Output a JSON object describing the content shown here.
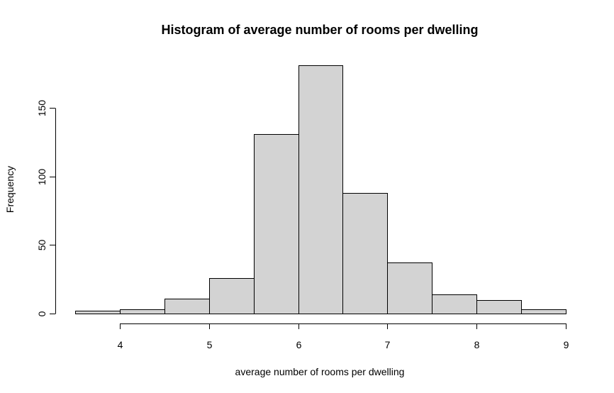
{
  "chart_data": {
    "type": "bar",
    "title": "Histogram of average number of rooms per dwelling",
    "xlabel": "average number of rooms per dwelling",
    "ylabel": "Frequency",
    "bins": [
      {
        "start": 3.5,
        "end": 4.0,
        "count": 2
      },
      {
        "start": 4.0,
        "end": 4.5,
        "count": 3
      },
      {
        "start": 4.5,
        "end": 5.0,
        "count": 11
      },
      {
        "start": 5.0,
        "end": 5.5,
        "count": 26
      },
      {
        "start": 5.5,
        "end": 6.0,
        "count": 131
      },
      {
        "start": 6.0,
        "end": 6.5,
        "count": 181
      },
      {
        "start": 6.5,
        "end": 7.0,
        "count": 88
      },
      {
        "start": 7.0,
        "end": 7.5,
        "count": 37
      },
      {
        "start": 7.5,
        "end": 8.0,
        "count": 14
      },
      {
        "start": 8.0,
        "end": 8.5,
        "count": 10
      },
      {
        "start": 8.5,
        "end": 9.0,
        "count": 3
      }
    ],
    "xticks": [
      4,
      5,
      6,
      7,
      8,
      9
    ],
    "yticks": [
      0,
      50,
      100,
      150
    ],
    "xlim": [
      3.5,
      9.0
    ],
    "ylim": [
      0,
      181
    ],
    "grid": false,
    "bar_color": "#d3d3d3",
    "edge_color": "#000000"
  }
}
